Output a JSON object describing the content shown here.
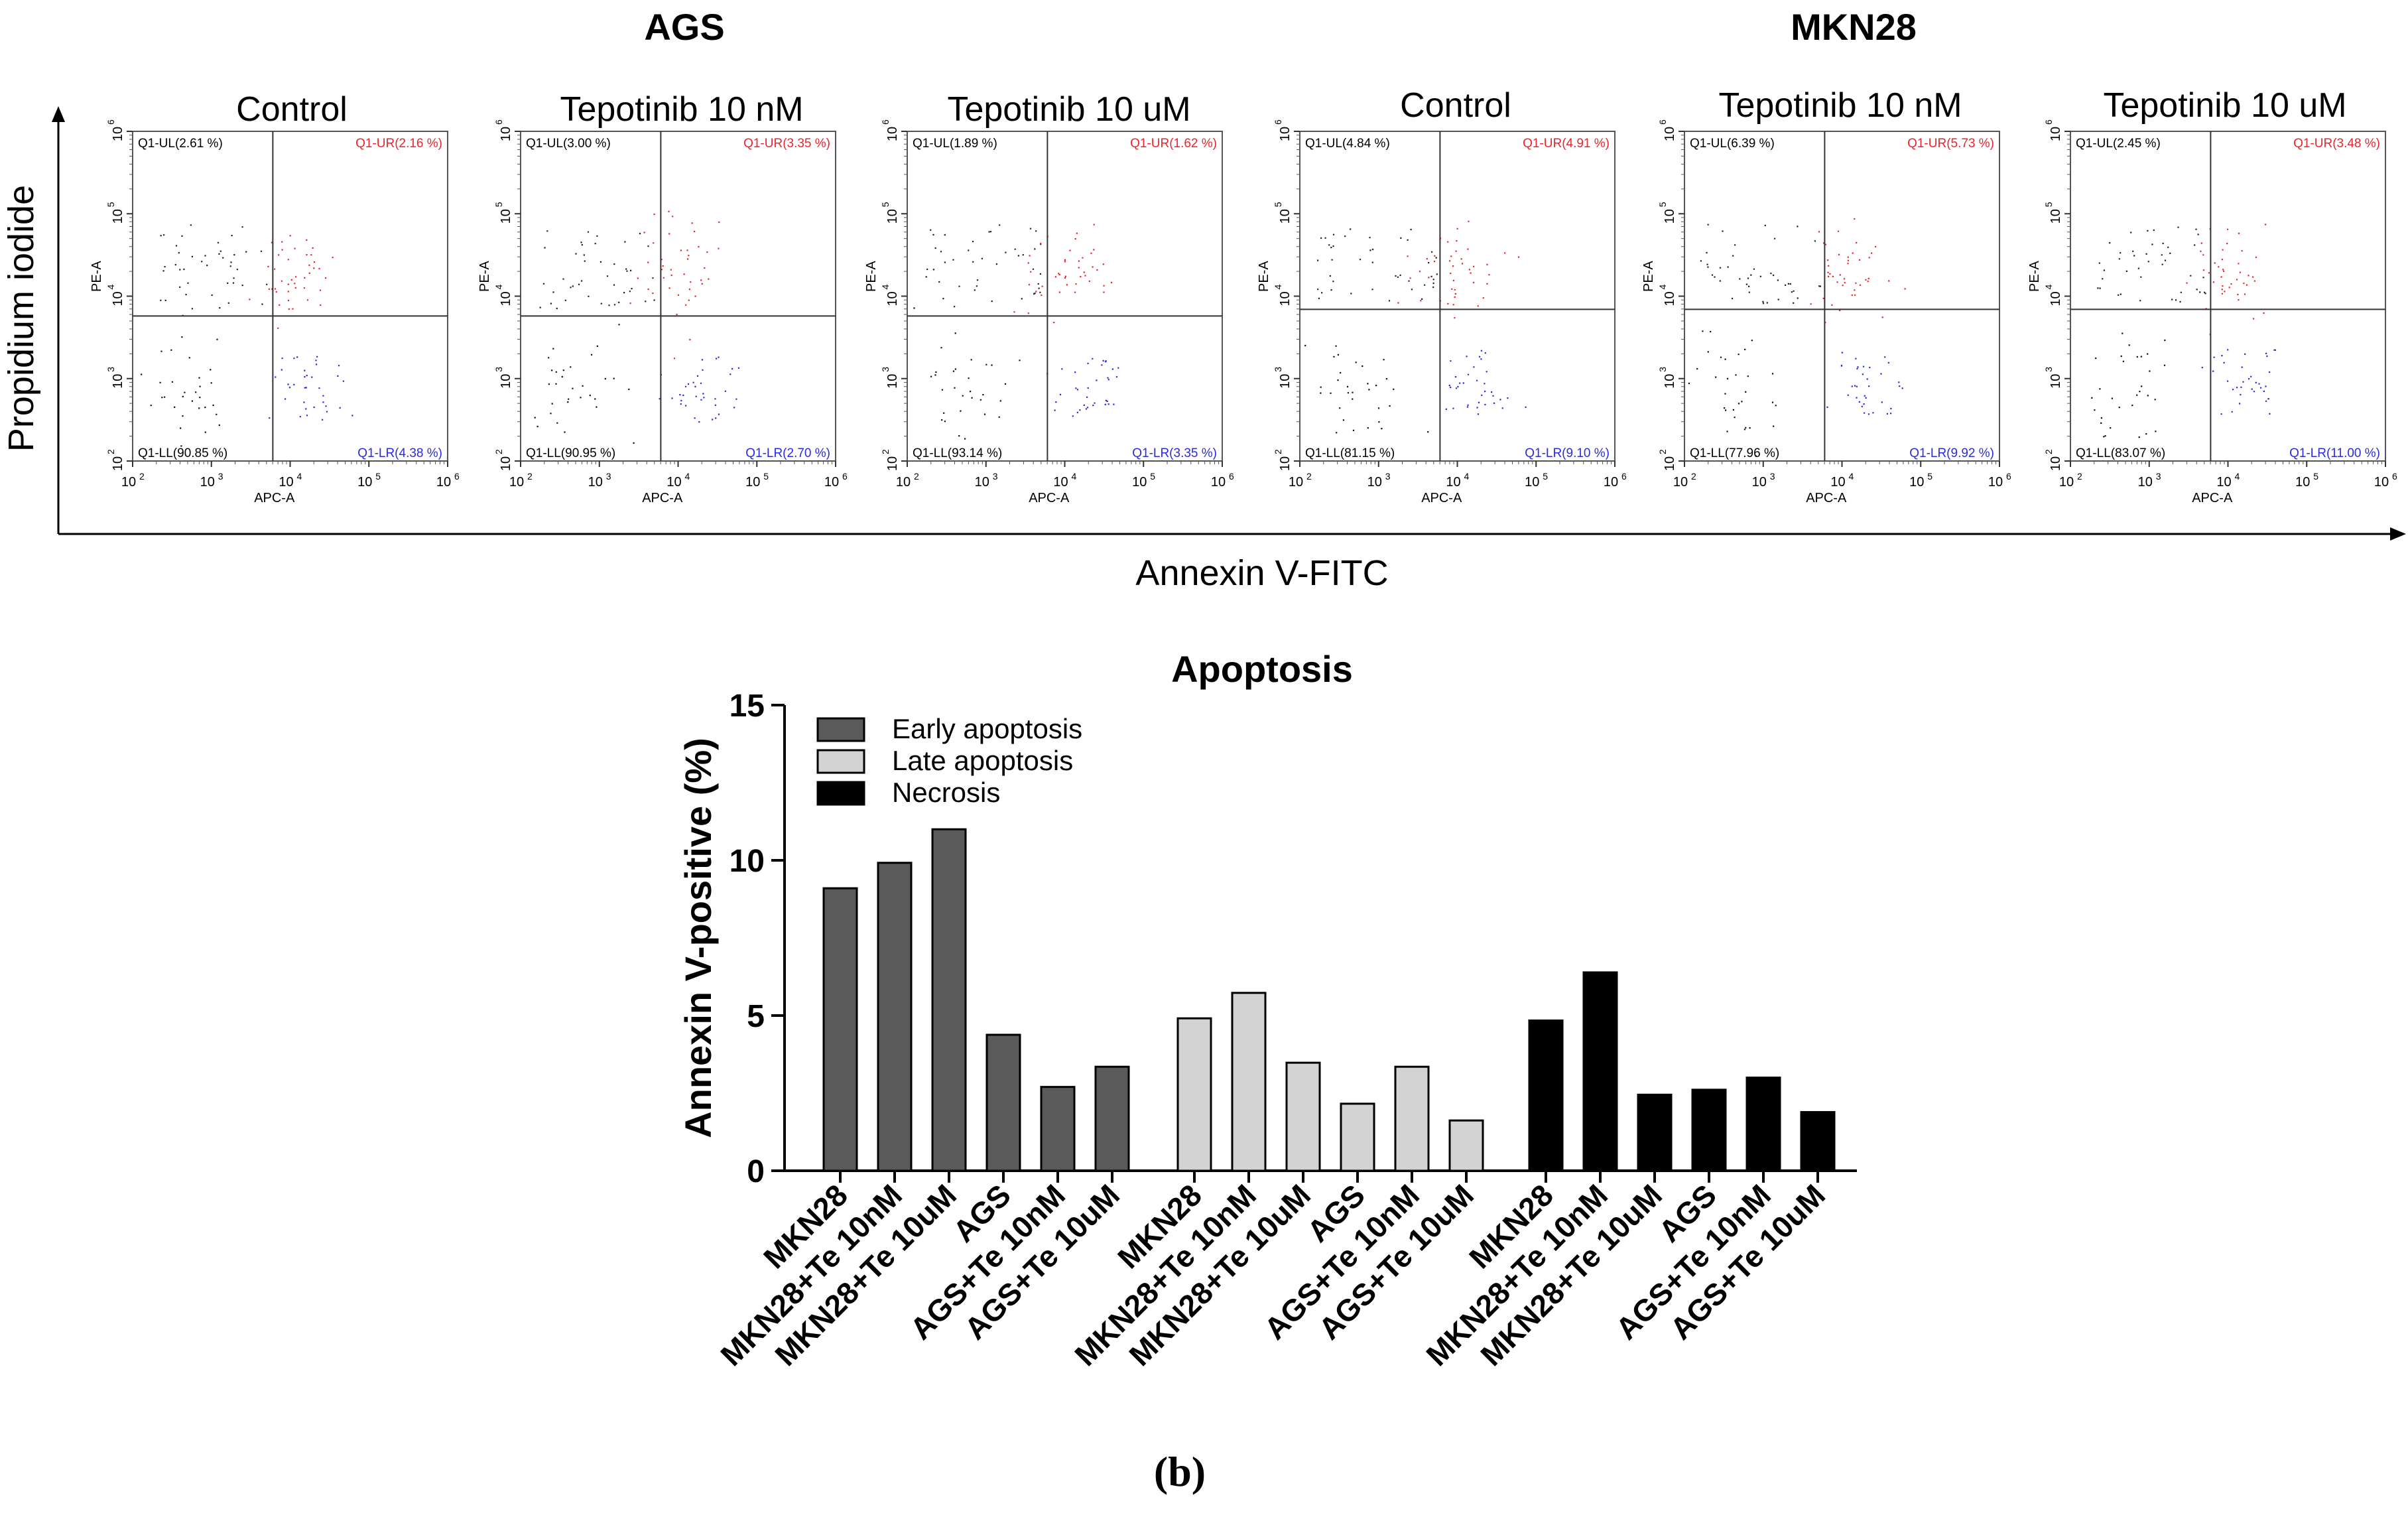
{
  "flow_panel": {
    "cell_lines": [
      {
        "name": "AGS",
        "conditions": [
          "Control",
          "Tepotinib 10 nM",
          "Tepotinib 10 uM"
        ]
      },
      {
        "name": "MKN28",
        "conditions": [
          "Control",
          "Tepotinib 10 nM",
          "Tepotinib 10 uM"
        ]
      }
    ],
    "y_title": "Propidium iodide",
    "x_title": "Annexin V-FITC",
    "plot_xlabel": "APC-A",
    "plot_ylabel": "PE-A",
    "tick_labels": [
      "10",
      "10",
      "10",
      "10",
      "10"
    ],
    "tick_exponents": [
      "2",
      "3",
      "4",
      "5",
      "6"
    ],
    "plots": [
      {
        "ul": "Q1-UL(2.61 %)",
        "ur": "Q1-UR(2.16 %)",
        "ll": "Q1-LL(90.85 %)",
        "lr": "Q1-LR(4.38 %)"
      },
      {
        "ul": "Q1-UL(3.00 %)",
        "ur": "Q1-UR(3.35 %)",
        "ll": "Q1-LL(90.95 %)",
        "lr": "Q1-LR(2.70 %)"
      },
      {
        "ul": "Q1-UL(1.89 %)",
        "ur": "Q1-UR(1.62 %)",
        "ll": "Q1-LL(93.14 %)",
        "lr": "Q1-LR(3.35 %)"
      },
      {
        "ul": "Q1-UL(4.84 %)",
        "ur": "Q1-UR(4.91 %)",
        "ll": "Q1-LL(81.15 %)",
        "lr": "Q1-LR(9.10 %)"
      },
      {
        "ul": "Q1-UL(6.39 %)",
        "ur": "Q1-UR(5.73 %)",
        "ll": "Q1-LL(77.96 %)",
        "lr": "Q1-LR(9.92 %)"
      },
      {
        "ul": "Q1-UL(2.45 %)",
        "ur": "Q1-UR(3.48 %)",
        "ll": "Q1-LL(83.07 %)",
        "lr": "Q1-LR(11.00 %)"
      }
    ]
  },
  "chart_data": {
    "type": "bar",
    "title": "Apoptosis",
    "ylabel": "Annexin V-positive (%)",
    "xlabel": "",
    "ylim": [
      0,
      15
    ],
    "yticks": [
      0,
      5,
      10,
      15
    ],
    "categories": [
      "MKN28",
      "MKN28+Te 10nM",
      "MKN28+Te 10uM",
      "AGS",
      "AGS+Te 10nM",
      "AGS+Te 10uM"
    ],
    "series": [
      {
        "name": "Early apoptosis",
        "color": "#5a5a5a",
        "values": [
          9.1,
          9.92,
          11.0,
          4.38,
          2.7,
          3.35
        ]
      },
      {
        "name": "Late apoptosis",
        "color": "#d3d3d3",
        "values": [
          4.91,
          5.73,
          3.48,
          2.16,
          3.35,
          1.62
        ]
      },
      {
        "name": "Necrosis",
        "color": "#000000",
        "values": [
          4.84,
          6.39,
          2.45,
          2.61,
          3.0,
          1.89
        ]
      }
    ]
  },
  "caption": "(b)"
}
